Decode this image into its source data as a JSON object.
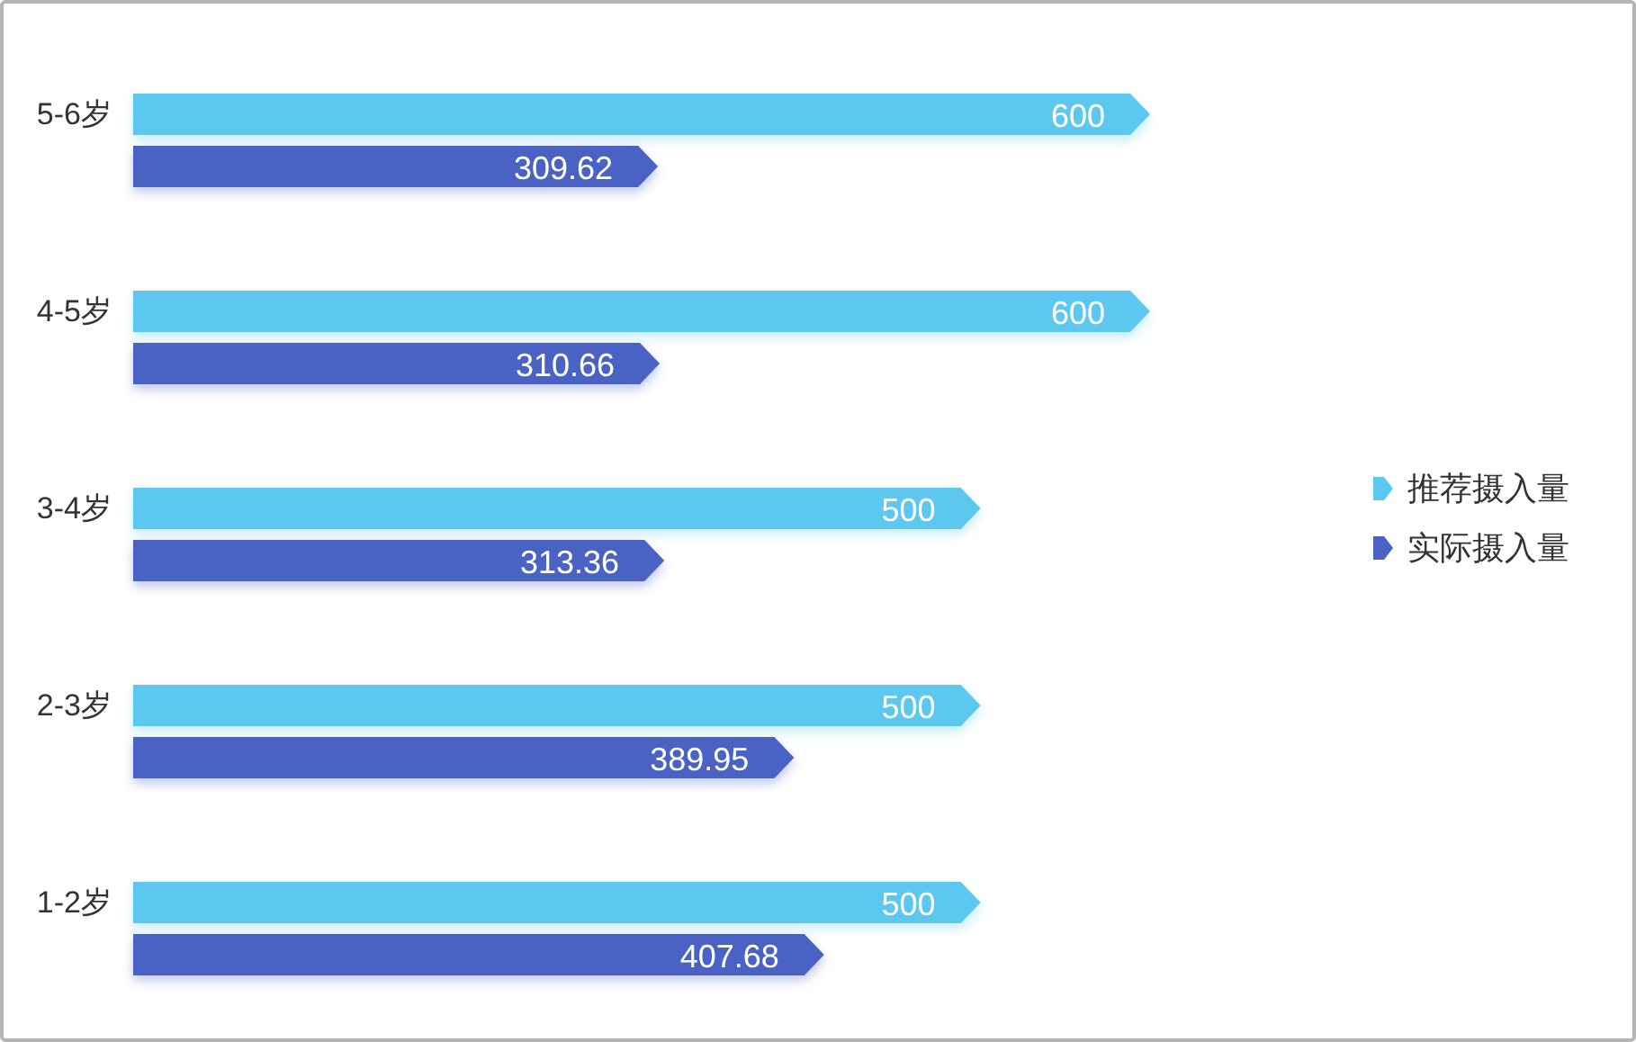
{
  "chart_data": {
    "type": "bar",
    "orientation": "horizontal",
    "categories": [
      "5-6岁",
      "4-5岁",
      "3-4岁",
      "2-3岁",
      "1-2岁"
    ],
    "series": [
      {
        "name": "推荐摄入量",
        "color": "#5bc8f0",
        "values": [
          600,
          600,
          500,
          500,
          500
        ]
      },
      {
        "name": "实际摄入量",
        "color": "#4a62c4",
        "values": [
          309.62,
          310.66,
          313.36,
          389.95,
          407.68
        ]
      }
    ],
    "data_labels": true,
    "legend": "right"
  }
}
